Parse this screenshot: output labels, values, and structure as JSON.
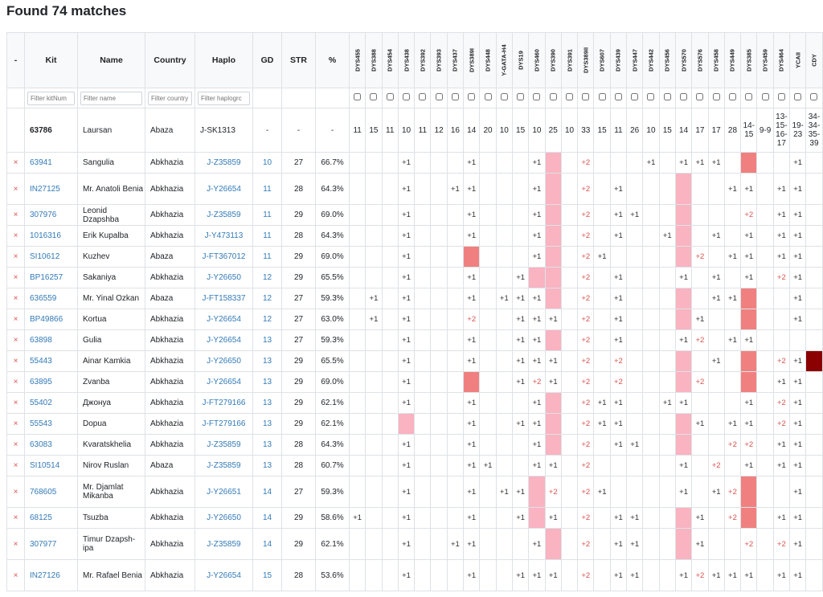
{
  "title": "Found 74 matches",
  "headers": {
    "minus": "-",
    "kit": "Kit",
    "name": "Name",
    "country": "Country",
    "haplo": "Haplo",
    "gd": "GD",
    "str": "STR",
    "pct": "%"
  },
  "markers": [
    "DYS455",
    "DYS388",
    "DYS454",
    "DYS438",
    "DYS392",
    "DYS393",
    "DYS437",
    "DYS389I",
    "DYS448",
    "Y-GATA-H4",
    "DYS19",
    "DYS460",
    "DYS390",
    "DYS391",
    "DYS389II",
    "DYS607",
    "DYS439",
    "DYS447",
    "DYS442",
    "DYS456",
    "DYS570",
    "DYS576",
    "DYS458",
    "DYS449",
    "DYS385",
    "DYS459",
    "DYS464",
    "YCAII",
    "CDY"
  ],
  "filters": {
    "kit": "Filter kitNum",
    "name": "Filter name",
    "country": "Filter country",
    "haplo": "Filter haplogrc"
  },
  "base": {
    "kit": "63786",
    "name": "Laursan",
    "country": "Abaza",
    "haplo": "J-SK1313",
    "gd": "-",
    "str": "-",
    "pct": "-",
    "values": [
      "11",
      "15",
      "11",
      "10",
      "11",
      "12",
      "16",
      "14",
      "20",
      "10",
      "15",
      "10",
      "25",
      "10",
      "33",
      "15",
      "11",
      "26",
      "10",
      "15",
      "14",
      "17",
      "17",
      "28",
      "14-15",
      "9-9",
      "13-15-16-17",
      "19-23",
      "34-34-35-39"
    ]
  },
  "rows": [
    {
      "kit": "63941",
      "name": "Sangulia",
      "country": "Abkhazia",
      "haplo": "J-Z35859",
      "gd": "10",
      "str": "27",
      "pct": "66.7%",
      "d": {
        "3": "+1",
        "7": "+1",
        "11": "+1",
        "12": "pk",
        "14": "+2",
        "18": "+1",
        "20": "+1",
        "21": "+1",
        "22": "+1",
        "24": "rd",
        "27": "+1"
      }
    },
    {
      "kit": "IN27125",
      "name": "Mr. Anatoli Benia",
      "country": "Abkhazia",
      "haplo": "J-Y26654",
      "gd": "11",
      "str": "28",
      "pct": "64.3%",
      "d": {
        "3": "+1",
        "6": "+1",
        "7": "+1",
        "11": "+1",
        "12": "pk",
        "14": "+2",
        "16": "+1",
        "20": "pk",
        "23": "+1",
        "24": "+1",
        "26": "+1",
        "27": "+1"
      }
    },
    {
      "kit": "307976",
      "name": "Leonid Dzapshba",
      "country": "Abkhazia",
      "haplo": "J-Z35859",
      "gd": "11",
      "str": "29",
      "pct": "69.0%",
      "d": {
        "3": "+1",
        "7": "+1",
        "11": "+1",
        "12": "pk",
        "14": "+2",
        "16": "+1",
        "17": "+1",
        "20": "pk",
        "24": "+2",
        "26": "+1",
        "27": "+1"
      }
    },
    {
      "kit": "1016316",
      "name": "Erik Kupalba",
      "country": "Abkhazia",
      "haplo": "J-Y473113",
      "gd": "11",
      "str": "28",
      "pct": "64.3%",
      "d": {
        "3": "+1",
        "7": "+1",
        "11": "+1",
        "12": "pk",
        "14": "+2",
        "16": "+1",
        "19": "+1",
        "20": "pk",
        "22": "+1",
        "24": "+1",
        "26": "+1",
        "27": "+1"
      }
    },
    {
      "kit": "SI10612",
      "name": "Kuzhev",
      "country": "Abaza",
      "haplo": "J-FT367012",
      "gd": "11",
      "str": "29",
      "pct": "69.0%",
      "d": {
        "3": "+1",
        "7": "rd",
        "11": "+1",
        "12": "pk",
        "14": "+2",
        "15": "+1",
        "20": "pk",
        "21": "+2",
        "23": "+1",
        "24": "+1",
        "26": "+1",
        "27": "+1"
      }
    },
    {
      "kit": "BP16257",
      "name": "Sakaniya",
      "country": "Abkhazia",
      "haplo": "J-Y26650",
      "gd": "12",
      "str": "29",
      "pct": "65.5%",
      "d": {
        "3": "+1",
        "7": "+1",
        "10": "+1",
        "11": "pk",
        "12": "pk",
        "14": "+2",
        "16": "+1",
        "20": "+1",
        "22": "+1",
        "24": "+1",
        "26": "+2",
        "27": "+1"
      }
    },
    {
      "kit": "636559",
      "name": "Mr. Yinal Ozkan",
      "country": "Abaza",
      "haplo": "J-FT158337",
      "gd": "12",
      "str": "27",
      "pct": "59.3%",
      "d": {
        "1": "+1",
        "3": "+1",
        "7": "+1",
        "9": "+1",
        "10": "+1",
        "11": "+1",
        "12": "pk",
        "14": "+2",
        "16": "+1",
        "20": "pk",
        "22": "+1",
        "23": "+1",
        "24": "rd",
        "27": "+1"
      }
    },
    {
      "kit": "BP49866",
      "name": "Kortua",
      "country": "Abkhazia",
      "haplo": "J-Y26654",
      "gd": "12",
      "str": "27",
      "pct": "63.0%",
      "d": {
        "1": "+1",
        "3": "+1",
        "7": "+2",
        "10": "+1",
        "11": "+1",
        "12": "+1",
        "14": "+2",
        "16": "+1",
        "20": "pk",
        "21": "+1",
        "24": "rd",
        "27": "+1"
      }
    },
    {
      "kit": "63898",
      "name": "Gulia",
      "country": "Abkhazia",
      "haplo": "J-Y26654",
      "gd": "13",
      "str": "27",
      "pct": "59.3%",
      "d": {
        "3": "+1",
        "7": "+1",
        "10": "+1",
        "11": "+1",
        "12": "pk",
        "14": "+2",
        "16": "+1",
        "20": "+1",
        "21": "+2",
        "23": "+1",
        "24": "+1"
      }
    },
    {
      "kit": "55443",
      "name": "Ainar Kamkia",
      "country": "Abkhazia",
      "haplo": "J-Y26650",
      "gd": "13",
      "str": "29",
      "pct": "65.5%",
      "d": {
        "3": "+1",
        "7": "+1",
        "10": "+1",
        "11": "+1",
        "12": "+1",
        "14": "+2",
        "16": "+2",
        "20": "pk",
        "22": "+1",
        "24": "rd",
        "26": "+2",
        "27": "+1",
        "28": "dk"
      }
    },
    {
      "kit": "63895",
      "name": "Zvanba",
      "country": "Abkhazia",
      "haplo": "J-Y26654",
      "gd": "13",
      "str": "29",
      "pct": "69.0%",
      "d": {
        "3": "+1",
        "7": "rd",
        "10": "+1",
        "11": "+2",
        "12": "+1",
        "14": "+2",
        "16": "+2",
        "20": "pk",
        "21": "+2",
        "24": "rd",
        "26": "+1",
        "27": "+1"
      }
    },
    {
      "kit": "55402",
      "name": "Джонуа",
      "country": "Abkhazia",
      "haplo": "J-FT279166",
      "gd": "13",
      "str": "29",
      "pct": "62.1%",
      "d": {
        "3": "+1",
        "7": "+1",
        "11": "+1",
        "12": "pk",
        "14": "+2",
        "15": "+1",
        "16": "+1",
        "19": "+1",
        "20": "+1",
        "24": "+1",
        "26": "+2",
        "27": "+1"
      }
    },
    {
      "kit": "55543",
      "name": "Dopua",
      "country": "Abkhazia",
      "haplo": "J-FT279166",
      "gd": "13",
      "str": "29",
      "pct": "62.1%",
      "d": {
        "3": "pk",
        "7": "+1",
        "10": "+1",
        "11": "+1",
        "12": "pk",
        "14": "+2",
        "15": "+1",
        "16": "+1",
        "20": "pk",
        "21": "+1",
        "23": "+1",
        "24": "+1",
        "26": "+2",
        "27": "+1"
      }
    },
    {
      "kit": "63083",
      "name": "Kvaratskhelia",
      "country": "Abkhazia",
      "haplo": "J-Z35859",
      "gd": "13",
      "str": "28",
      "pct": "64.3%",
      "d": {
        "3": "+1",
        "7": "+1",
        "11": "+1",
        "12": "pk",
        "14": "+2",
        "16": "+1",
        "17": "+1",
        "20": "pk",
        "23": "+2",
        "24": "+2",
        "26": "+1",
        "27": "+1"
      }
    },
    {
      "kit": "SI10514",
      "name": "Nirov Ruslan",
      "country": "Abaza",
      "haplo": "J-Z35859",
      "gd": "13",
      "str": "28",
      "pct": "60.7%",
      "d": {
        "3": "+1",
        "7": "+1",
        "8": "+1",
        "11": "+1",
        "12": "+1",
        "14": "+2",
        "20": "+1",
        "22": "+2",
        "24": "+1",
        "26": "+1",
        "27": "+1"
      }
    },
    {
      "kit": "768605",
      "name": "Mr. Djamlat Mikanba",
      "country": "Abkhazia",
      "haplo": "J-Y26651",
      "gd": "14",
      "str": "27",
      "pct": "59.3%",
      "d": {
        "3": "+1",
        "7": "+1",
        "9": "+1",
        "10": "+1",
        "11": "pk",
        "12": "+2",
        "14": "+2",
        "15": "+1",
        "20": "+1",
        "22": "+1",
        "23": "+2",
        "24": "rd",
        "27": "+1"
      }
    },
    {
      "kit": "68125",
      "name": "Tsuzba",
      "country": "Abkhazia",
      "haplo": "J-Y26650",
      "gd": "14",
      "str": "29",
      "pct": "58.6%",
      "d": {
        "0": "+1",
        "3": "+1",
        "7": "+1",
        "10": "+1",
        "11": "pk",
        "12": "+1",
        "14": "+2",
        "16": "+1",
        "17": "+1",
        "20": "pk",
        "21": "+1",
        "23": "+2",
        "24": "rd",
        "26": "+1",
        "27": "+1"
      }
    },
    {
      "kit": "307977",
      "name": "Timur Dzapsh-ipa",
      "country": "Abkhazia",
      "haplo": "J-Z35859",
      "gd": "14",
      "str": "29",
      "pct": "62.1%",
      "d": {
        "3": "+1",
        "6": "+1",
        "7": "+1",
        "11": "+1",
        "12": "pk",
        "14": "+2",
        "16": "+1",
        "17": "+1",
        "20": "pk",
        "21": "+1",
        "24": "+2",
        "26": "+2",
        "27": "+1"
      }
    },
    {
      "kit": "IN27126",
      "name": "Mr. Rafael Benia",
      "country": "Abkhazia",
      "haplo": "J-Y26654",
      "gd": "15",
      "str": "28",
      "pct": "53.6%",
      "d": {
        "3": "+1",
        "7": "+1",
        "10": "+1",
        "11": "+1",
        "12": "+1",
        "14": "+2",
        "16": "+1",
        "17": "+1",
        "20": "+1",
        "21": "+2",
        "22": "+1",
        "23": "+1",
        "24": "+1",
        "26": "+1",
        "27": "+1"
      }
    }
  ],
  "remove_glyph": "×",
  "colors": {
    "pink": "#f9b3c1",
    "salmon": "#f08080",
    "darkred": "#8b0000",
    "link": "#337ab7",
    "red_text": "#d9534f"
  }
}
